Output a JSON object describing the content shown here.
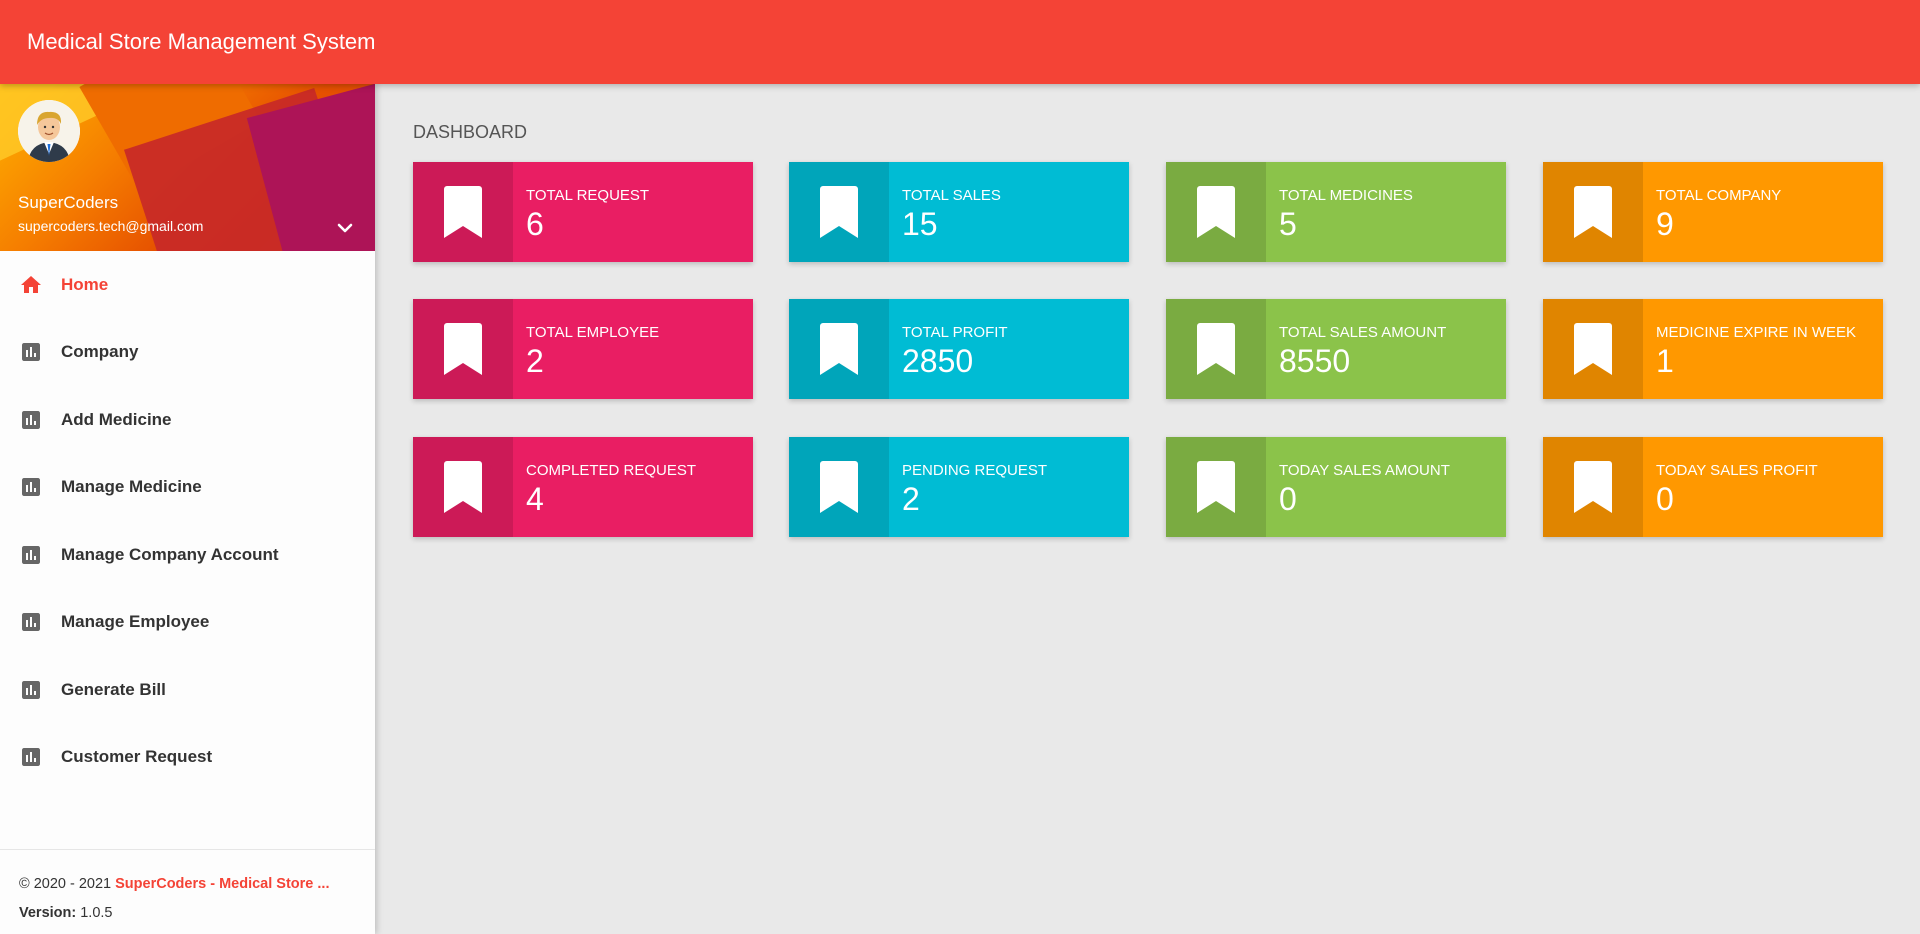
{
  "header": {
    "title": "Medical Store Management System"
  },
  "user": {
    "name": "SuperCoders",
    "email": "supercoders.tech@gmail.com"
  },
  "sidebar": {
    "items": [
      {
        "label": "Home",
        "icon": "home-icon",
        "active": true
      },
      {
        "label": "Company",
        "icon": "bar-chart-icon"
      },
      {
        "label": "Add Medicine",
        "icon": "bar-chart-icon"
      },
      {
        "label": "Manage Medicine",
        "icon": "bar-chart-icon"
      },
      {
        "label": "Manage Company Account",
        "icon": "bar-chart-icon"
      },
      {
        "label": "Manage Employee",
        "icon": "bar-chart-icon"
      },
      {
        "label": "Generate Bill",
        "icon": "bar-chart-icon"
      },
      {
        "label": "Customer Request",
        "icon": "bar-chart-icon"
      }
    ]
  },
  "footer": {
    "copyright": "© 2020 - 2021 ",
    "brand": "SuperCoders - Medical Store ...",
    "version_label": "Version:",
    "version": " 1.0.5"
  },
  "main": {
    "title": "DASHBOARD",
    "cards": [
      {
        "label": "TOTAL REQUEST",
        "value": "6",
        "color": "#e91e63"
      },
      {
        "label": "TOTAL SALES",
        "value": "15",
        "color": "#00bcd4"
      },
      {
        "label": "TOTAL MEDICINES",
        "value": "5",
        "color": "#8bc34a"
      },
      {
        "label": "TOTAL COMPANY",
        "value": "9",
        "color": "#ff9800"
      },
      {
        "label": "TOTAL EMPLOYEE",
        "value": "2",
        "color": "#e91e63"
      },
      {
        "label": "TOTAL PROFIT",
        "value": "2850",
        "color": "#00bcd4"
      },
      {
        "label": "TOTAL SALES AMOUNT",
        "value": "8550",
        "color": "#8bc34a"
      },
      {
        "label": "MEDICINE EXPIRE IN WEEK",
        "value": "1",
        "color": "#ff9800"
      },
      {
        "label": "COMPLETED REQUEST",
        "value": "4",
        "color": "#e91e63"
      },
      {
        "label": "PENDING REQUEST",
        "value": "2",
        "color": "#00bcd4"
      },
      {
        "label": "TODAY SALES AMOUNT",
        "value": "0",
        "color": "#8bc34a"
      },
      {
        "label": "TODAY SALES PROFIT",
        "value": "0",
        "color": "#ff9800"
      }
    ]
  },
  "colors": {
    "accent": "#f44336"
  }
}
